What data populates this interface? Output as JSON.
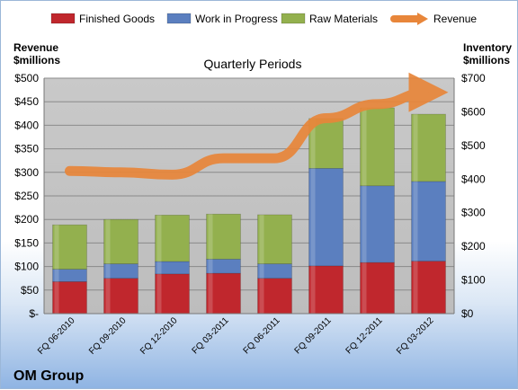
{
  "chart_data": {
    "type": "bar",
    "title": "Quarterly Periods",
    "company": "OM Group",
    "left_axis_label": [
      "Revenue",
      "$millions"
    ],
    "right_axis_label": [
      "Inventory",
      "$millions"
    ],
    "categories": [
      "FQ 06-2010",
      "FQ 09-2010",
      "FQ 12-2010",
      "FQ 03-2011",
      "FQ 06-2011",
      "FQ 09-2011",
      "FQ 12-2011",
      "FQ 03-2012"
    ],
    "left_ylim": [
      0,
      500
    ],
    "right_ylim": [
      0,
      700
    ],
    "left_ticks": [
      "$-",
      "$50",
      "$100",
      "$150",
      "$200",
      "$250",
      "$300",
      "$350",
      "$400",
      "$450",
      "$500"
    ],
    "right_ticks": [
      "$0",
      "$100",
      "$200",
      "$300",
      "$400",
      "$500",
      "$600",
      "$700"
    ],
    "series": [
      {
        "name": "Finished Goods",
        "type": "stacked-bar",
        "axis": "right",
        "color": "#c0272d",
        "values": [
          95,
          105,
          118,
          120,
          105,
          142,
          152,
          156
        ]
      },
      {
        "name": "Work in Progress",
        "type": "stacked-bar",
        "axis": "right",
        "color": "#5b7fbf",
        "values": [
          37,
          43,
          37,
          42,
          43,
          290,
          228,
          237
        ]
      },
      {
        "name": "Raw Materials",
        "type": "stacked-bar",
        "axis": "right",
        "color": "#93b04e",
        "values": [
          132,
          132,
          138,
          134,
          146,
          148,
          232,
          200
        ]
      },
      {
        "name": "Revenue",
        "type": "line",
        "axis": "left",
        "color": "#e8863a",
        "values": [
          303,
          300,
          295,
          330,
          330,
          415,
          445,
          470
        ]
      }
    ],
    "grid": true,
    "legend": "top"
  }
}
